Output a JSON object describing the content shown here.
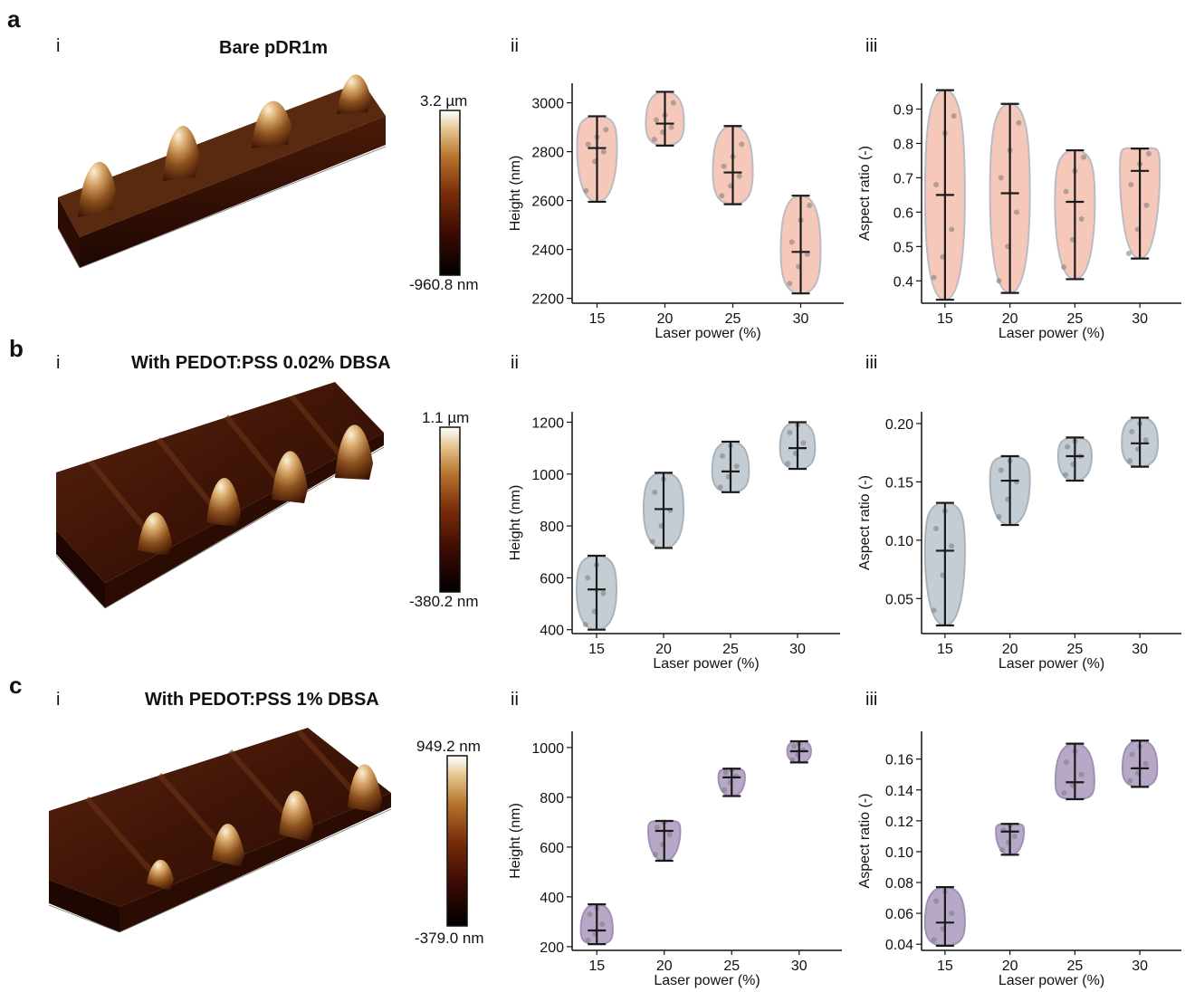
{
  "colors": {
    "bare_fill": "#f6c8ba",
    "bare_stroke": "#b9bcc4",
    "pedot002_fill": "#c5cdd4",
    "pedot002_stroke": "#a9b3bc",
    "pedot1_fill": "#b8a8c8",
    "pedot1_stroke": "#9f91b5",
    "median_bar": "#1a1a1a",
    "points": "#7a7a7a",
    "afm_colormap": [
      "#000000",
      "#3b0a02",
      "#7a2d0a",
      "#b8742c",
      "#e3c48c",
      "#ffffff"
    ]
  },
  "rows": [
    {
      "letter": "a",
      "afm": {
        "roman": "i",
        "title": "Bare pDR1m",
        "cbar_max": "3.2 µm",
        "cbar_min": "-960.8 nm",
        "bumps": 4
      },
      "height_panel": {
        "roman": "ii"
      },
      "ratio_panel": {
        "roman": "iii"
      }
    },
    {
      "letter": "b",
      "afm": {
        "roman": "i",
        "title": "With PEDOT:PSS 0.02% DBSA",
        "cbar_max": "1.1 µm",
        "cbar_min": "-380.2 nm",
        "bumps": 4
      },
      "height_panel": {
        "roman": "ii"
      },
      "ratio_panel": {
        "roman": "iii"
      }
    },
    {
      "letter": "c",
      "afm": {
        "roman": "i",
        "title": "With PEDOT:PSS 1% DBSA",
        "cbar_max": "949.2 nm",
        "cbar_min": "-379.0 nm",
        "bumps": 4
      },
      "height_panel": {
        "roman": "ii"
      },
      "ratio_panel": {
        "roman": "iii"
      }
    }
  ],
  "chart_data": [
    {
      "id": "a-ii",
      "type": "violin",
      "xlabel": "Laser power (%)",
      "ylabel": "Height (nm)",
      "categories": [
        "15",
        "20",
        "25",
        "30"
      ],
      "ylim": [
        2180,
        3080
      ],
      "yticks": [
        2200,
        2400,
        2600,
        2800,
        3000
      ],
      "series": [
        {
          "min": 2595,
          "median": 2815,
          "max": 2945,
          "points": [
            2640,
            2760,
            2800,
            2830,
            2860,
            2890
          ]
        },
        {
          "min": 2825,
          "median": 2915,
          "max": 3045,
          "points": [
            2850,
            2880,
            2900,
            2930,
            2950,
            3000
          ]
        },
        {
          "min": 2585,
          "median": 2715,
          "max": 2905,
          "points": [
            2620,
            2660,
            2700,
            2740,
            2780,
            2830
          ]
        },
        {
          "min": 2220,
          "median": 2390,
          "max": 2620,
          "points": [
            2260,
            2330,
            2380,
            2430,
            2520,
            2580
          ]
        }
      ],
      "style": "bare"
    },
    {
      "id": "a-iii",
      "type": "violin",
      "xlabel": "Laser power (%)",
      "ylabel": "Aspect ratio (-)",
      "categories": [
        "15",
        "20",
        "25",
        "30"
      ],
      "ylim": [
        0.335,
        0.975
      ],
      "yticks": [
        0.4,
        0.5,
        0.6,
        0.7,
        0.8,
        0.9
      ],
      "series": [
        {
          "min": 0.345,
          "median": 0.65,
          "max": 0.955,
          "points": [
            0.41,
            0.47,
            0.55,
            0.68,
            0.83,
            0.88
          ]
        },
        {
          "min": 0.365,
          "median": 0.655,
          "max": 0.915,
          "points": [
            0.4,
            0.5,
            0.6,
            0.7,
            0.78,
            0.86
          ]
        },
        {
          "min": 0.405,
          "median": 0.63,
          "max": 0.78,
          "points": [
            0.44,
            0.52,
            0.58,
            0.66,
            0.72,
            0.76
          ]
        },
        {
          "min": 0.465,
          "median": 0.72,
          "max": 0.785,
          "points": [
            0.48,
            0.55,
            0.62,
            0.68,
            0.74,
            0.77
          ]
        }
      ],
      "style": "bare"
    },
    {
      "id": "b-ii",
      "type": "violin",
      "xlabel": "Laser power (%)",
      "ylabel": "Height (nm)",
      "categories": [
        "15",
        "20",
        "25",
        "30"
      ],
      "ylim": [
        385,
        1240
      ],
      "yticks": [
        400,
        600,
        800,
        1000,
        1200
      ],
      "series": [
        {
          "min": 400,
          "median": 555,
          "max": 685,
          "points": [
            420,
            470,
            540,
            600,
            650
          ]
        },
        {
          "min": 715,
          "median": 865,
          "max": 1005,
          "points": [
            740,
            800,
            860,
            930,
            980
          ]
        },
        {
          "min": 930,
          "median": 1010,
          "max": 1125,
          "points": [
            950,
            990,
            1030,
            1070,
            1110
          ]
        },
        {
          "min": 1020,
          "median": 1100,
          "max": 1200,
          "points": [
            1040,
            1080,
            1120,
            1160,
            1190
          ]
        }
      ],
      "style": "pedot002"
    },
    {
      "id": "b-iii",
      "type": "violin",
      "xlabel": "Laser power (%)",
      "ylabel": "Aspect ratio (-)",
      "categories": [
        "15",
        "20",
        "25",
        "30"
      ],
      "ylim": [
        0.02,
        0.21
      ],
      "yticks": [
        0.05,
        0.1,
        0.15,
        0.2
      ],
      "series": [
        {
          "min": 0.027,
          "median": 0.091,
          "max": 0.132,
          "points": [
            0.04,
            0.07,
            0.095,
            0.11,
            0.125
          ]
        },
        {
          "min": 0.113,
          "median": 0.151,
          "max": 0.172,
          "points": [
            0.12,
            0.135,
            0.15,
            0.16,
            0.168
          ]
        },
        {
          "min": 0.151,
          "median": 0.172,
          "max": 0.188,
          "points": [
            0.156,
            0.165,
            0.172,
            0.18,
            0.185
          ]
        },
        {
          "min": 0.163,
          "median": 0.183,
          "max": 0.205,
          "points": [
            0.168,
            0.178,
            0.186,
            0.193,
            0.2
          ]
        }
      ],
      "style": "pedot002"
    },
    {
      "id": "c-ii",
      "type": "violin",
      "xlabel": "Laser power (%)",
      "ylabel": "Height (nm)",
      "categories": [
        "15",
        "20",
        "25",
        "30"
      ],
      "ylim": [
        185,
        1065
      ],
      "yticks": [
        200,
        400,
        600,
        800,
        1000
      ],
      "series": [
        {
          "min": 210,
          "median": 265,
          "max": 370,
          "points": [
            225,
            250,
            290,
            330,
            355
          ]
        },
        {
          "min": 545,
          "median": 665,
          "max": 705,
          "points": [
            570,
            610,
            650,
            680,
            700
          ]
        },
        {
          "min": 805,
          "median": 880,
          "max": 915,
          "points": [
            830,
            860,
            885,
            900,
            910
          ]
        },
        {
          "min": 940,
          "median": 985,
          "max": 1025,
          "points": [
            950,
            970,
            990,
            1005,
            1015
          ]
        }
      ],
      "style": "pedot1"
    },
    {
      "id": "c-iii",
      "type": "violin",
      "xlabel": "Laser power (%)",
      "ylabel": "Aspect ratio (-)",
      "categories": [
        "15",
        "20",
        "25",
        "30"
      ],
      "ylim": [
        0.036,
        0.178
      ],
      "yticks": [
        0.04,
        0.06,
        0.08,
        0.1,
        0.12,
        0.14,
        0.16
      ],
      "series": [
        {
          "min": 0.039,
          "median": 0.054,
          "max": 0.077,
          "points": [
            0.043,
            0.05,
            0.06,
            0.068,
            0.074
          ]
        },
        {
          "min": 0.098,
          "median": 0.113,
          "max": 0.118,
          "points": [
            0.101,
            0.106,
            0.11,
            0.114,
            0.117
          ]
        },
        {
          "min": 0.134,
          "median": 0.145,
          "max": 0.17,
          "points": [
            0.138,
            0.143,
            0.15,
            0.158,
            0.165
          ]
        },
        {
          "min": 0.142,
          "median": 0.154,
          "max": 0.172,
          "points": [
            0.146,
            0.151,
            0.157,
            0.163,
            0.168
          ]
        }
      ],
      "style": "pedot1"
    }
  ]
}
